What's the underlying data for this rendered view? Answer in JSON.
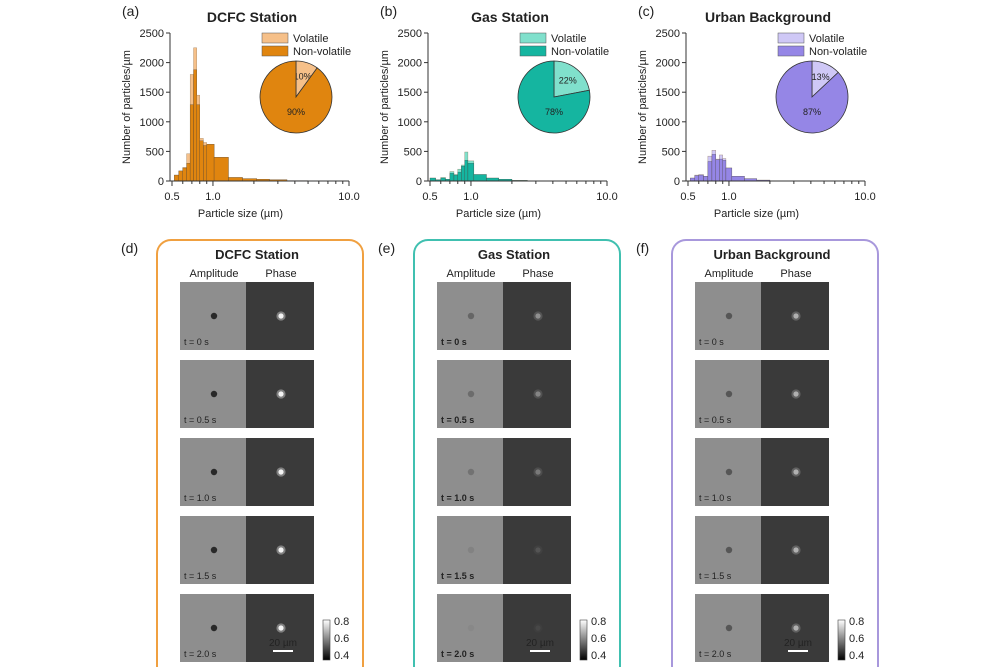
{
  "chart_data": [
    {
      "type": "bar",
      "panel_label": "(a)",
      "title": "DCFC Station",
      "xlabel": "Particle size (µm)",
      "ylabel": "Number of particles/µm",
      "xscale": "log",
      "xlim": [
        0.5,
        10.0
      ],
      "ylim": [
        0,
        2500
      ],
      "xticks": [
        "0.5",
        "1.0",
        "10.0"
      ],
      "yticks": [
        "0",
        "500",
        "1000",
        "1500",
        "2000",
        "2500"
      ],
      "legend": [
        "Volatile",
        "Non-volatile"
      ],
      "legend_position": "top-right",
      "colors": {
        "volatile": "#f6c089",
        "nonvolatile": "#e0850f"
      },
      "bins": [
        {
          "lo": 0.52,
          "hi": 0.56,
          "total": 100,
          "nonvolatile": 100
        },
        {
          "lo": 0.56,
          "hi": 0.6,
          "total": 170,
          "nonvolatile": 170
        },
        {
          "lo": 0.6,
          "hi": 0.64,
          "total": 230,
          "nonvolatile": 220
        },
        {
          "lo": 0.64,
          "hi": 0.68,
          "total": 460,
          "nonvolatile": 300
        },
        {
          "lo": 0.68,
          "hi": 0.72,
          "total": 1800,
          "nonvolatile": 1290
        },
        {
          "lo": 0.72,
          "hi": 0.76,
          "total": 2250,
          "nonvolatile": 1880
        },
        {
          "lo": 0.76,
          "hi": 0.8,
          "total": 1450,
          "nonvolatile": 1290
        },
        {
          "lo": 0.8,
          "hi": 0.85,
          "total": 720,
          "nonvolatile": 680
        },
        {
          "lo": 0.85,
          "hi": 0.9,
          "total": 650,
          "nonvolatile": 600
        },
        {
          "lo": 0.9,
          "hi": 1.02,
          "total": 620,
          "nonvolatile": 620
        },
        {
          "lo": 1.02,
          "hi": 1.3,
          "total": 400,
          "nonvolatile": 400
        },
        {
          "lo": 1.3,
          "hi": 1.65,
          "total": 60,
          "nonvolatile": 60
        },
        {
          "lo": 1.65,
          "hi": 2.1,
          "total": 40,
          "nonvolatile": 40
        },
        {
          "lo": 2.1,
          "hi": 2.6,
          "total": 30,
          "nonvolatile": 30
        },
        {
          "lo": 2.6,
          "hi": 3.5,
          "total": 22,
          "nonvolatile": 22
        },
        {
          "lo": 3.5,
          "hi": 5.0,
          "total": 6,
          "nonvolatile": 6
        }
      ],
      "pie": [
        {
          "name": "Volatile",
          "value": 10,
          "label": "10%"
        },
        {
          "name": "Non-volatile",
          "value": 90,
          "label": "90%"
        }
      ]
    },
    {
      "type": "bar",
      "panel_label": "(b)",
      "title": "Gas Station",
      "xlabel": "Particle size (µm)",
      "ylabel": "Number of particles/µm",
      "xscale": "log",
      "xlim": [
        0.5,
        10.0
      ],
      "ylim": [
        0,
        2500
      ],
      "xticks": [
        "0.5",
        "1.0",
        "10.0"
      ],
      "yticks": [
        "0",
        "500",
        "1000",
        "1500",
        "2000",
        "2500"
      ],
      "legend": [
        "Volatile",
        "Non-volatile"
      ],
      "legend_position": "top-right",
      "colors": {
        "volatile": "#80e0cc",
        "nonvolatile": "#15b5a0"
      },
      "bins": [
        {
          "lo": 0.5,
          "hi": 0.55,
          "total": 50,
          "nonvolatile": 50
        },
        {
          "lo": 0.55,
          "hi": 0.6,
          "total": 20,
          "nonvolatile": 20
        },
        {
          "lo": 0.6,
          "hi": 0.65,
          "total": 60,
          "nonvolatile": 50
        },
        {
          "lo": 0.65,
          "hi": 0.7,
          "total": 30,
          "nonvolatile": 30
        },
        {
          "lo": 0.7,
          "hi": 0.75,
          "total": 160,
          "nonvolatile": 130
        },
        {
          "lo": 0.75,
          "hi": 0.8,
          "total": 110,
          "nonvolatile": 100
        },
        {
          "lo": 0.8,
          "hi": 0.85,
          "total": 200,
          "nonvolatile": 150
        },
        {
          "lo": 0.85,
          "hi": 0.9,
          "total": 270,
          "nonvolatile": 250
        },
        {
          "lo": 0.9,
          "hi": 0.95,
          "total": 490,
          "nonvolatile": 350
        },
        {
          "lo": 0.95,
          "hi": 1.05,
          "total": 340,
          "nonvolatile": 300
        },
        {
          "lo": 1.05,
          "hi": 1.3,
          "total": 110,
          "nonvolatile": 110
        },
        {
          "lo": 1.3,
          "hi": 1.6,
          "total": 50,
          "nonvolatile": 50
        },
        {
          "lo": 1.6,
          "hi": 2.0,
          "total": 30,
          "nonvolatile": 30
        },
        {
          "lo": 2.0,
          "hi": 2.6,
          "total": 10,
          "nonvolatile": 10
        }
      ],
      "pie": [
        {
          "name": "Volatile",
          "value": 22,
          "label": "22%"
        },
        {
          "name": "Non-volatile",
          "value": 78,
          "label": "78%"
        }
      ]
    },
    {
      "type": "bar",
      "panel_label": "(c)",
      "title": "Urban Background",
      "xlabel": "Particle size (µm)",
      "ylabel": "Number of particles/µm",
      "xscale": "log",
      "xlim": [
        0.5,
        10.0
      ],
      "ylim": [
        0,
        2500
      ],
      "xticks": [
        "0.5",
        "1.0",
        "10.0"
      ],
      "yticks": [
        "0",
        "500",
        "1000",
        "1500",
        "2000",
        "2500"
      ],
      "legend": [
        "Volatile",
        "Non-volatile"
      ],
      "legend_position": "top-right",
      "colors": {
        "volatile": "#cfc8f6",
        "nonvolatile": "#9586e6"
      },
      "bins": [
        {
          "lo": 0.52,
          "hi": 0.56,
          "total": 50,
          "nonvolatile": 50
        },
        {
          "lo": 0.56,
          "hi": 0.6,
          "total": 100,
          "nonvolatile": 90
        },
        {
          "lo": 0.6,
          "hi": 0.65,
          "total": 110,
          "nonvolatile": 100
        },
        {
          "lo": 0.65,
          "hi": 0.7,
          "total": 80,
          "nonvolatile": 80
        },
        {
          "lo": 0.7,
          "hi": 0.75,
          "total": 420,
          "nonvolatile": 330
        },
        {
          "lo": 0.75,
          "hi": 0.8,
          "total": 520,
          "nonvolatile": 450
        },
        {
          "lo": 0.8,
          "hi": 0.85,
          "total": 370,
          "nonvolatile": 360
        },
        {
          "lo": 0.85,
          "hi": 0.9,
          "total": 440,
          "nonvolatile": 370
        },
        {
          "lo": 0.9,
          "hi": 0.95,
          "total": 380,
          "nonvolatile": 350
        },
        {
          "lo": 0.95,
          "hi": 1.05,
          "total": 220,
          "nonvolatile": 220
        },
        {
          "lo": 1.05,
          "hi": 1.3,
          "total": 80,
          "nonvolatile": 80
        },
        {
          "lo": 1.3,
          "hi": 1.6,
          "total": 40,
          "nonvolatile": 40
        },
        {
          "lo": 1.6,
          "hi": 2.0,
          "total": 15,
          "nonvolatile": 15
        }
      ],
      "pie": [
        {
          "name": "Volatile",
          "value": 13,
          "label": "13%"
        },
        {
          "name": "Non-volatile",
          "value": 87,
          "label": "87%"
        }
      ]
    }
  ],
  "image_panels": [
    {
      "panel_label": "(d)",
      "title": "DCFC Station",
      "border_color": "#f0a040",
      "columns": [
        "Amplitude",
        "Phase"
      ],
      "times": [
        "t = 0 s",
        "t = 0.5 s",
        "t = 1.0 s",
        "t = 1.5 s",
        "t = 2.0 s"
      ],
      "spot_contrast": [
        0.9,
        0.9,
        0.9,
        0.9,
        0.9
      ],
      "colorbar_ticks": [
        "0.8",
        "0.6",
        "0.4"
      ],
      "scale_bar": "20 µm"
    },
    {
      "panel_label": "(e)",
      "title": "Gas Station",
      "border_color": "#40c0b0",
      "columns": [
        "Amplitude",
        "Phase"
      ],
      "times": [
        "t = 0 s",
        "t = 0.5 s",
        "t = 1.0 s",
        "t = 1.5 s",
        "t = 2.0 s"
      ],
      "spot_contrast": [
        0.35,
        0.3,
        0.25,
        0.1,
        0.05
      ],
      "colorbar_ticks": [
        "0.8",
        "0.6",
        "0.4"
      ],
      "scale_bar": "20 µm"
    },
    {
      "panel_label": "(f)",
      "title": "Urban Background",
      "border_color": "#a898dc",
      "columns": [
        "Amplitude",
        "Phase"
      ],
      "times": [
        "t = 0 s",
        "t = 0.5 s",
        "t = 1.0 s",
        "t = 1.5 s",
        "t = 2.0 s"
      ],
      "spot_contrast": [
        0.5,
        0.5,
        0.5,
        0.5,
        0.5
      ],
      "colorbar_ticks": [
        "0.8",
        "0.6",
        "0.4"
      ],
      "scale_bar": "20 µm"
    }
  ]
}
